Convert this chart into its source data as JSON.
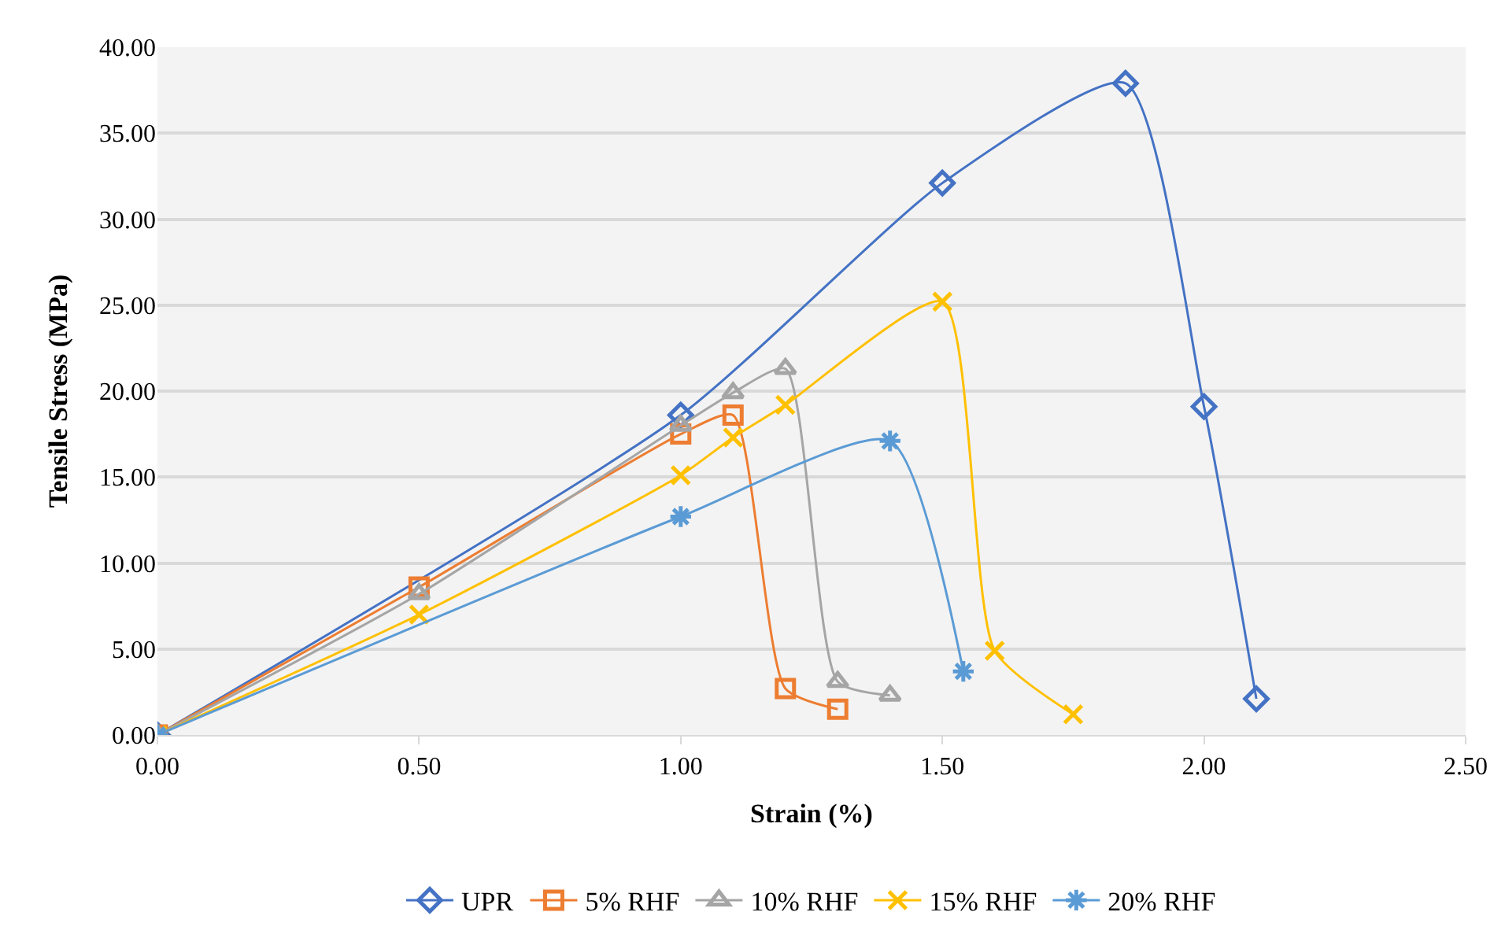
{
  "chart_data": {
    "type": "line",
    "xlabel": "Strain (%)",
    "ylabel": "Tensile Stress (MPa)",
    "xlim": [
      0,
      2.5
    ],
    "xticks": [
      {
        "value": 0,
        "label": "0.00"
      },
      {
        "value": 0.5,
        "label": "0.50"
      },
      {
        "value": 1,
        "label": "1.00"
      },
      {
        "value": 1.5,
        "label": "1.50"
      },
      {
        "value": 2,
        "label": "2.00"
      },
      {
        "value": 2.5,
        "label": "2.50"
      }
    ],
    "ylim": [
      0,
      40
    ],
    "yticks": [
      {
        "value": 0,
        "label": "0.00"
      },
      {
        "value": 5,
        "label": "5.00"
      },
      {
        "value": 10,
        "label": "10.00"
      },
      {
        "value": 15,
        "label": "15.00"
      },
      {
        "value": 20,
        "label": "20.00"
      },
      {
        "value": 25,
        "label": "25.00"
      },
      {
        "value": 30,
        "label": "30.00"
      },
      {
        "value": 35,
        "label": "35.00"
      },
      {
        "value": 40,
        "label": "40.00"
      }
    ],
    "grid": "y",
    "legend": "bottom",
    "series": [
      {
        "name": "UPR",
        "color": "#4472c4",
        "marker": "diamond",
        "x": [
          0,
          1,
          1.5,
          1.85,
          2,
          2.1
        ],
        "values": [
          0,
          18.6,
          32.1,
          37.9,
          19.1,
          2.1
        ]
      },
      {
        "name": "5% RHF",
        "color": "#ed7d31",
        "marker": "square",
        "x": [
          0,
          0.5,
          1,
          1.1,
          1.2,
          1.3
        ],
        "values": [
          0,
          8.6,
          17.5,
          18.6,
          2.7,
          1.5
        ]
      },
      {
        "name": "10% RHF",
        "color": "#a5a5a5",
        "marker": "triangle",
        "x": [
          0,
          0.5,
          1,
          1.1,
          1.2,
          1.3,
          1.4
        ],
        "values": [
          0,
          8.2,
          18,
          19.9,
          21.3,
          3.1,
          2.3
        ]
      },
      {
        "name": "15% RHF",
        "color": "#ffc000",
        "marker": "cross",
        "x": [
          0,
          0.5,
          1,
          1.1,
          1.2,
          1.5,
          1.6,
          1.75
        ],
        "values": [
          0,
          7,
          15.1,
          17.3,
          19.2,
          25.2,
          4.9,
          1.2
        ]
      },
      {
        "name": "20% RHF",
        "color": "#5b9bd5",
        "marker": "cross",
        "x": [
          0,
          1,
          1.4,
          1.54
        ],
        "values": [
          0,
          12.7,
          17.1,
          3.7
        ]
      }
    ]
  }
}
